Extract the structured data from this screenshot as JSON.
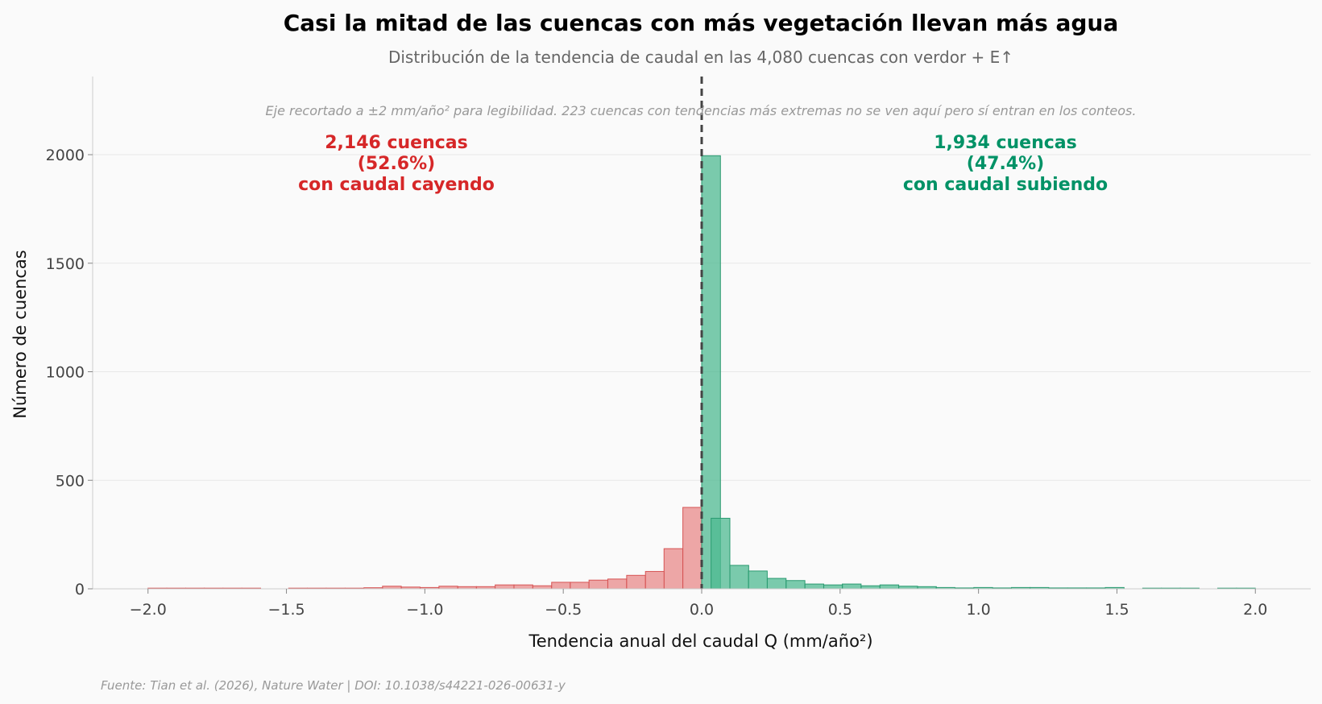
{
  "chart_data": {
    "type": "bar",
    "title": "Casi la mitad de las cuencas con más vegetación llevan más agua",
    "subtitle": "Distribución de la tendencia de caudal en las 4,080 cuencas con verdor + E↑",
    "xlabel": "Tendencia anual del caudal Q  (mm/año²)",
    "ylabel": "Número de cuencas",
    "xlim": [
      -2.2,
      2.2
    ],
    "ylim": [
      0,
      2360
    ],
    "xticks": [
      -2.0,
      -1.5,
      -1.0,
      -0.5,
      0.0,
      0.5,
      1.0,
      1.5,
      2.0
    ],
    "xtick_labels": [
      "−2.0",
      "−1.5",
      "−1.0",
      "−0.5",
      "0.0",
      "0.5",
      "1.0",
      "1.5",
      "2.0"
    ],
    "yticks": [
      0,
      500,
      1000,
      1500,
      2000
    ],
    "ytick_labels": [
      "0",
      "500",
      "1000",
      "1500",
      "2000"
    ],
    "grid": "horizontal",
    "bin_width": 0.0678,
    "negative_color": "#e88a8a",
    "negative_edge": "#d65454",
    "positive_color": "#4fb992",
    "positive_edge": "#2a9a70",
    "reference_line_x": 0.0,
    "series": [
      {
        "sign": "negative",
        "bin_starts": [
          -2.0,
          -1.932,
          -1.864,
          -1.797,
          -1.729,
          -1.661,
          -1.492,
          -1.424,
          -1.356,
          -1.288,
          -1.22,
          -1.153,
          -1.085,
          -1.017,
          -0.949,
          -0.881,
          -0.814,
          -0.746,
          -0.678,
          -0.61,
          -0.542,
          -0.475,
          -0.407,
          -0.339,
          -0.271,
          -0.203,
          -0.136,
          -0.068
        ],
        "values": [
          3,
          3,
          3,
          3,
          3,
          3,
          3,
          3,
          3,
          3,
          5,
          12,
          8,
          6,
          12,
          10,
          10,
          18,
          18,
          14,
          30,
          30,
          40,
          45,
          62,
          80,
          185,
          375
        ]
      },
      {
        "sign": "positive",
        "bin_starts": [
          0.0,
          0.034,
          0.102,
          0.169,
          0.237,
          0.305,
          0.373,
          0.441,
          0.508,
          0.576,
          0.644,
          0.712,
          0.78,
          0.847,
          0.915,
          0.983,
          1.051,
          1.119,
          1.186,
          1.254,
          1.322,
          1.39,
          1.458,
          1.593,
          1.661,
          1.729,
          1.864,
          1.932
        ],
        "values": [
          1995,
          325,
          108,
          82,
          48,
          38,
          22,
          18,
          22,
          14,
          18,
          12,
          10,
          6,
          4,
          6,
          4,
          6,
          6,
          4,
          4,
          4,
          6,
          3,
          3,
          3,
          3,
          3
        ]
      }
    ],
    "annotations": {
      "note": "Eje recortado a ±2 mm/año² para legibilidad. 223 cuencas con tendencias más extremas no se ven aquí pero sí entran en los conteos.",
      "negative": {
        "line1": "2,146 cuencas",
        "line2": "(52.6%)",
        "line3": "con caudal cayendo",
        "color": "#d62728"
      },
      "positive": {
        "line1": "1,934 cuencas",
        "line2": "(47.4%)",
        "line3": "con caudal subiendo",
        "color": "#009266"
      }
    },
    "source": "Fuente: Tian et al. (2026), Nature Water | DOI: 10.1038/s44221-026-00631-y"
  }
}
